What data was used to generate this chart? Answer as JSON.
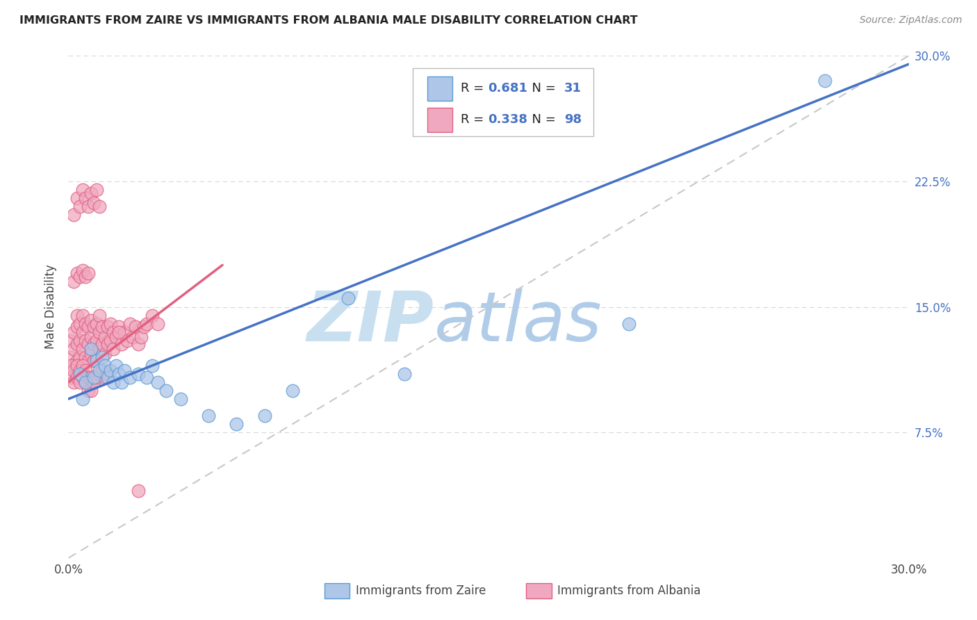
{
  "title": "IMMIGRANTS FROM ZAIRE VS IMMIGRANTS FROM ALBANIA MALE DISABILITY CORRELATION CHART",
  "source": "Source: ZipAtlas.com",
  "ylabel": "Male Disability",
  "xlim": [
    0.0,
    0.3
  ],
  "ylim": [
    0.0,
    0.3
  ],
  "legend_zaire_R": "0.681",
  "legend_zaire_N": "31",
  "legend_albania_R": "0.338",
  "legend_albania_N": "98",
  "zaire_color": "#aec6e8",
  "albania_color": "#f0a8c0",
  "zaire_edge_color": "#5b9bd5",
  "albania_edge_color": "#e06080",
  "zaire_line_color": "#4472c4",
  "albania_line_color": "#e06080",
  "diagonal_color": "#c8c8c8",
  "watermark_zip": "ZIP",
  "watermark_atlas": "atlas",
  "watermark_color_zip": "#c8dff0",
  "watermark_color_atlas": "#b0cce8",
  "grid_color": "#d8d8d8",
  "tick_color": "#4472c4",
  "zaire_points_x": [
    0.004,
    0.005,
    0.006,
    0.008,
    0.009,
    0.01,
    0.011,
    0.012,
    0.013,
    0.014,
    0.015,
    0.016,
    0.017,
    0.018,
    0.019,
    0.02,
    0.022,
    0.025,
    0.028,
    0.03,
    0.032,
    0.035,
    0.04,
    0.05,
    0.06,
    0.07,
    0.08,
    0.1,
    0.12,
    0.2,
    0.27
  ],
  "zaire_points_y": [
    0.11,
    0.095,
    0.105,
    0.125,
    0.108,
    0.118,
    0.112,
    0.12,
    0.115,
    0.108,
    0.112,
    0.105,
    0.115,
    0.11,
    0.105,
    0.112,
    0.108,
    0.11,
    0.108,
    0.115,
    0.105,
    0.1,
    0.095,
    0.085,
    0.08,
    0.085,
    0.1,
    0.155,
    0.11,
    0.14,
    0.285
  ],
  "albania_points_x": [
    0.001,
    0.001,
    0.002,
    0.002,
    0.002,
    0.003,
    0.003,
    0.003,
    0.003,
    0.004,
    0.004,
    0.004,
    0.005,
    0.005,
    0.005,
    0.005,
    0.006,
    0.006,
    0.006,
    0.007,
    0.007,
    0.007,
    0.008,
    0.008,
    0.008,
    0.009,
    0.009,
    0.009,
    0.01,
    0.01,
    0.01,
    0.011,
    0.011,
    0.011,
    0.012,
    0.012,
    0.013,
    0.013,
    0.014,
    0.014,
    0.015,
    0.015,
    0.016,
    0.016,
    0.017,
    0.018,
    0.019,
    0.02,
    0.021,
    0.022,
    0.023,
    0.024,
    0.025,
    0.026,
    0.027,
    0.028,
    0.03,
    0.032,
    0.001,
    0.001,
    0.002,
    0.002,
    0.003,
    0.003,
    0.004,
    0.004,
    0.005,
    0.005,
    0.006,
    0.006,
    0.007,
    0.007,
    0.008,
    0.008,
    0.009,
    0.01,
    0.011,
    0.012,
    0.013,
    0.014,
    0.002,
    0.003,
    0.004,
    0.005,
    0.006,
    0.007,
    0.008,
    0.009,
    0.01,
    0.011,
    0.002,
    0.003,
    0.004,
    0.005,
    0.006,
    0.007,
    0.018,
    0.025
  ],
  "albania_points_y": [
    0.12,
    0.13,
    0.115,
    0.125,
    0.135,
    0.118,
    0.128,
    0.138,
    0.145,
    0.12,
    0.13,
    0.14,
    0.115,
    0.125,
    0.135,
    0.145,
    0.12,
    0.13,
    0.14,
    0.118,
    0.128,
    0.138,
    0.122,
    0.132,
    0.142,
    0.118,
    0.128,
    0.138,
    0.12,
    0.13,
    0.14,
    0.125,
    0.135,
    0.145,
    0.128,
    0.138,
    0.122,
    0.132,
    0.128,
    0.138,
    0.13,
    0.14,
    0.125,
    0.135,
    0.132,
    0.138,
    0.128,
    0.135,
    0.13,
    0.14,
    0.132,
    0.138,
    0.128,
    0.132,
    0.138,
    0.14,
    0.145,
    0.14,
    0.108,
    0.115,
    0.105,
    0.112,
    0.108,
    0.115,
    0.105,
    0.112,
    0.108,
    0.115,
    0.105,
    0.112,
    0.1,
    0.108,
    0.1,
    0.108,
    0.105,
    0.108,
    0.11,
    0.112,
    0.108,
    0.11,
    0.205,
    0.215,
    0.21,
    0.22,
    0.215,
    0.21,
    0.218,
    0.212,
    0.22,
    0.21,
    0.165,
    0.17,
    0.168,
    0.172,
    0.168,
    0.17,
    0.135,
    0.04
  ],
  "zaire_line_x0": 0.0,
  "zaire_line_x1": 0.3,
  "zaire_line_y0": 0.095,
  "zaire_line_y1": 0.295,
  "albania_line_x0": 0.0,
  "albania_line_x1": 0.055,
  "albania_line_y0": 0.105,
  "albania_line_y1": 0.175
}
